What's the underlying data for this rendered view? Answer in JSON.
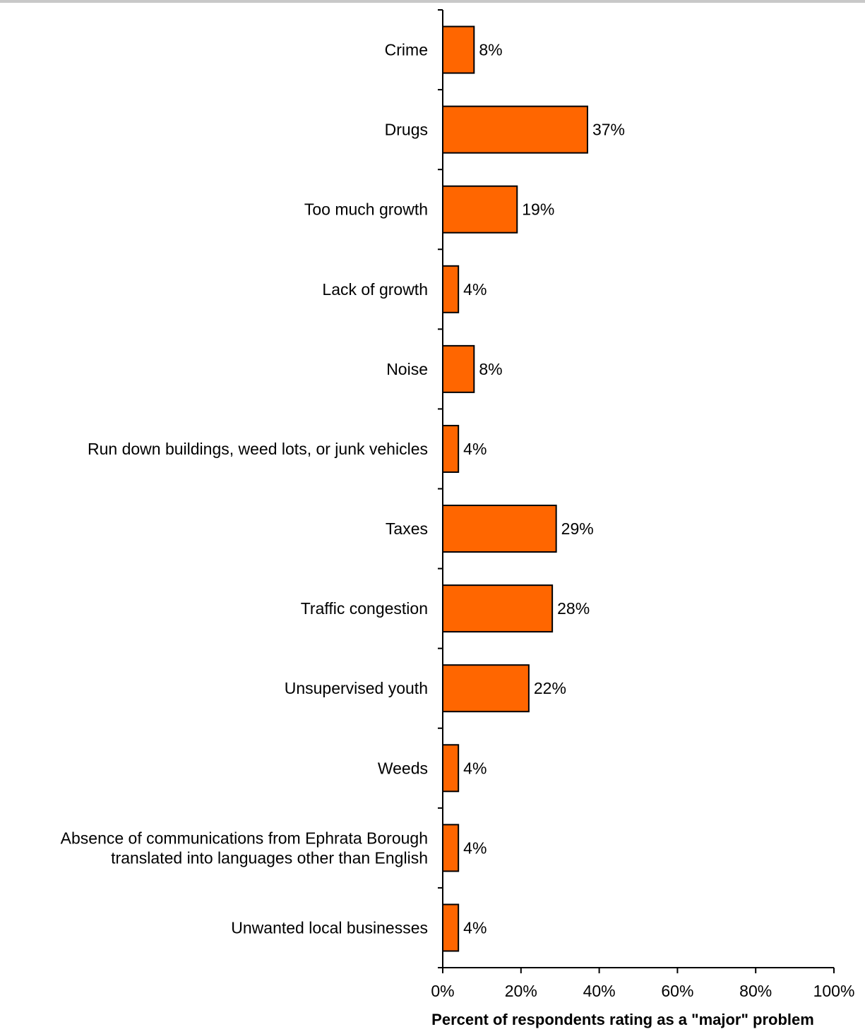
{
  "chart_data": {
    "type": "bar",
    "orientation": "horizontal",
    "categories": [
      [
        "Crime"
      ],
      [
        "Drugs"
      ],
      [
        "Too much growth"
      ],
      [
        "Lack of growth"
      ],
      [
        "Noise"
      ],
      [
        "Run down buildings, weed lots, or junk vehicles"
      ],
      [
        "Taxes"
      ],
      [
        "Traffic congestion"
      ],
      [
        "Unsupervised youth"
      ],
      [
        "Weeds"
      ],
      [
        "Absence of communications from Ephrata Borough",
        "translated into languages other than English"
      ],
      [
        "Unwanted local businesses"
      ]
    ],
    "values": [
      8,
      37,
      19,
      4,
      8,
      4,
      29,
      28,
      22,
      4,
      4,
      4
    ],
    "value_labels": [
      "8%",
      "37%",
      "19%",
      "4%",
      "8%",
      "4%",
      "29%",
      "28%",
      "22%",
      "4%",
      "4%",
      "4%"
    ],
    "xlim": [
      0,
      100
    ],
    "xticks": [
      0,
      20,
      40,
      60,
      80,
      100
    ],
    "xtick_labels": [
      "0%",
      "20%",
      "40%",
      "60%",
      "80%",
      "100%"
    ],
    "xlabel": "Percent of respondents rating as a \"major\" problem",
    "ylabel": "",
    "title": "",
    "grid": false,
    "legend": false,
    "bar_color": "#ff6600",
    "bar_edge_color": "#000000"
  }
}
